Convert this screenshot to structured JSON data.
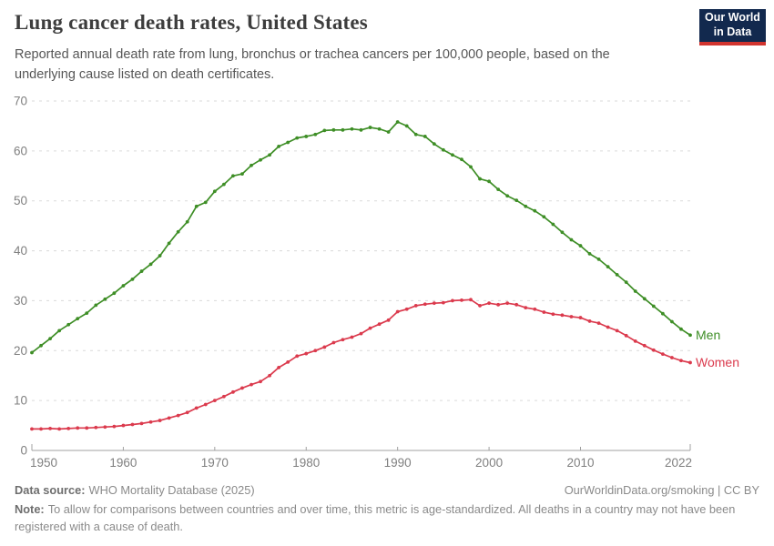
{
  "header": {
    "title": "Lung cancer death rates, United States",
    "subtitle": "Reported annual death rate from lung, bronchus or trachea cancers per 100,000 people, based on the underlying cause listed on death certificates."
  },
  "logo": {
    "line1": "Our World",
    "line2": "in Data",
    "bg_color": "#12294E",
    "stripe_color": "#D1342F"
  },
  "footer": {
    "datasource_label": "Data source:",
    "datasource": "WHO Mortality Database (2025)",
    "attribution": "OurWorldinData.org/smoking | CC BY",
    "note_label": "Note:",
    "note": "To allow for comparisons between countries and over time, this metric is age-standardized. All deaths in a country may not have been registered with a cause of death."
  },
  "chart_data": {
    "type": "line",
    "title": "Lung cancer death rates, United States",
    "xlabel": "",
    "ylabel": "",
    "xlim": [
      1950,
      2022
    ],
    "ylim": [
      0,
      70
    ],
    "xticks": [
      1950,
      1960,
      1970,
      1980,
      1990,
      2000,
      2010,
      2022
    ],
    "yticks": [
      0,
      10,
      20,
      30,
      40,
      50,
      60,
      70
    ],
    "grid": "horizontal-dashed",
    "legend": "end-of-line-labels",
    "marker": "circle",
    "x": [
      1950,
      1951,
      1952,
      1953,
      1954,
      1955,
      1956,
      1957,
      1958,
      1959,
      1960,
      1961,
      1962,
      1963,
      1964,
      1965,
      1966,
      1967,
      1968,
      1969,
      1970,
      1971,
      1972,
      1973,
      1974,
      1975,
      1976,
      1977,
      1978,
      1979,
      1980,
      1981,
      1982,
      1983,
      1984,
      1985,
      1986,
      1987,
      1988,
      1989,
      1990,
      1991,
      1992,
      1993,
      1994,
      1995,
      1996,
      1997,
      1998,
      1999,
      2000,
      2001,
      2002,
      2003,
      2004,
      2005,
      2006,
      2007,
      2008,
      2009,
      2010,
      2011,
      2012,
      2013,
      2014,
      2015,
      2016,
      2017,
      2018,
      2019,
      2020,
      2021,
      2022
    ],
    "series": [
      {
        "name": "Men",
        "color": "#3E8E26",
        "values": [
          19.6,
          21.0,
          22.4,
          24.0,
          25.2,
          26.4,
          27.5,
          29.1,
          30.3,
          31.5,
          33.0,
          34.3,
          35.9,
          37.3,
          39.0,
          41.5,
          43.8,
          45.8,
          48.9,
          49.7,
          51.9,
          53.3,
          55.0,
          55.4,
          57.1,
          58.2,
          59.2,
          60.9,
          61.7,
          62.6,
          62.9,
          63.3,
          64.1,
          64.2,
          64.2,
          64.4,
          64.2,
          64.7,
          64.4,
          63.8,
          65.8,
          65.0,
          63.3,
          62.9,
          61.4,
          60.2,
          59.2,
          58.3,
          56.8,
          54.4,
          53.9,
          52.3,
          51.0,
          50.1,
          48.9,
          48.0,
          46.8,
          45.3,
          43.7,
          42.2,
          41.0,
          39.4,
          38.3,
          36.8,
          35.2,
          33.7,
          31.9,
          30.4,
          28.9,
          27.4,
          25.8,
          24.3,
          23.1
        ]
      },
      {
        "name": "Women",
        "color": "#DB3A4D",
        "values": [
          4.3,
          4.3,
          4.4,
          4.3,
          4.4,
          4.5,
          4.5,
          4.6,
          4.7,
          4.8,
          5.0,
          5.2,
          5.4,
          5.7,
          6.0,
          6.5,
          7.0,
          7.6,
          8.5,
          9.2,
          10.0,
          10.8,
          11.7,
          12.5,
          13.2,
          13.8,
          15.0,
          16.6,
          17.7,
          18.9,
          19.4,
          20.0,
          20.7,
          21.6,
          22.2,
          22.7,
          23.4,
          24.5,
          25.3,
          26.1,
          27.8,
          28.3,
          29.0,
          29.3,
          29.5,
          29.6,
          30.0,
          30.1,
          30.2,
          29.0,
          29.5,
          29.2,
          29.5,
          29.2,
          28.6,
          28.3,
          27.7,
          27.3,
          27.1,
          26.8,
          26.6,
          25.9,
          25.5,
          24.7,
          24.0,
          23.0,
          21.9,
          21.0,
          20.1,
          19.3,
          18.6,
          18.0,
          17.6
        ]
      }
    ],
    "axis_colors": {
      "tick_label": "#808080",
      "gridline": "#dadada",
      "axis_line": "#a0a0a0"
    }
  }
}
